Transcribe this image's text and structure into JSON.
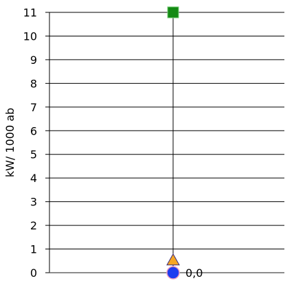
{
  "chart_data": {
    "type": "scatter",
    "title": "",
    "xlabel": "",
    "ylabel": "kW/ 1000 ab",
    "ylim": [
      0,
      11
    ],
    "yticks": [
      "0",
      "1",
      "2",
      "3",
      "4",
      "5",
      "6",
      "7",
      "8",
      "9",
      "10",
      "11"
    ],
    "grid": true,
    "series": [
      {
        "marker": "square",
        "color": "#138a13",
        "values": [
          11
        ],
        "label": ""
      },
      {
        "marker": "triangle",
        "color": "#f5a623",
        "values": [
          0.5
        ],
        "label": ""
      },
      {
        "marker": "circle",
        "color": "#1f3cf0",
        "values": [
          0
        ],
        "label": "0,0"
      }
    ]
  }
}
